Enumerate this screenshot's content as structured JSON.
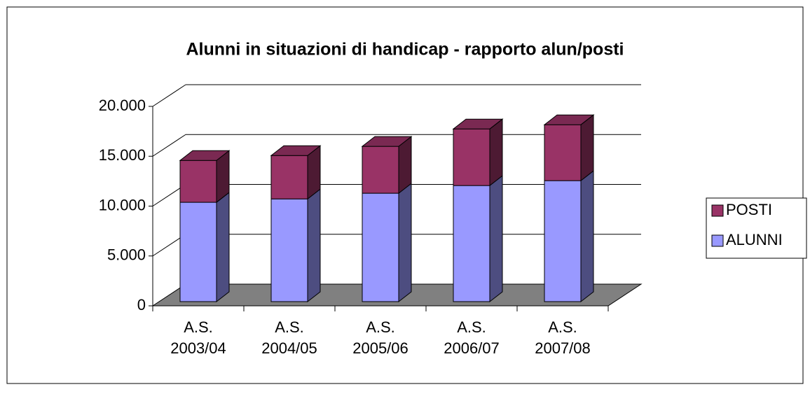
{
  "chart_data": {
    "type": "bar3d_stacked",
    "title": "Alunni in situazioni di handicap - rapporto alun/posti",
    "categories": [
      "A.S. 2003/04",
      "A.S. 2004/05",
      "A.S. 2005/06",
      "A.S. 2006/07",
      "A.S. 2007/08"
    ],
    "series": [
      {
        "name": "ALUNNI",
        "color": "#9999ff",
        "values": [
          9960,
          10300,
          10870,
          11640,
          12130
        ]
      },
      {
        "name": "POSTI",
        "color": "#993366",
        "values": [
          4200,
          4350,
          4700,
          5680,
          5610
        ]
      }
    ],
    "ylim": [
      0,
      20000
    ],
    "yticks": [
      0,
      {
        "value": 5000,
        "label": "5.000"
      },
      {
        "value": 10000,
        "label": "10.000"
      },
      {
        "value": 15000,
        "label": "15.000"
      },
      {
        "value": 20000,
        "label": "20.000"
      }
    ],
    "grid": true,
    "legend": "right"
  }
}
